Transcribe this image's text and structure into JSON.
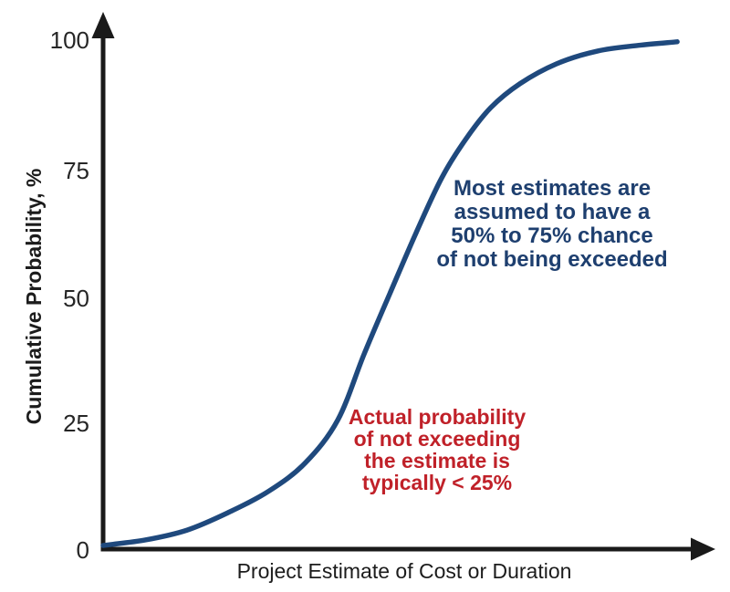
{
  "chart_data": {
    "type": "line",
    "title": "",
    "xlabel": "Project Estimate of Cost or Duration",
    "ylabel": "Cumulative Probability, %",
    "x_axis": {
      "label": "Project Estimate of Cost or Duration",
      "tick_labels": [],
      "arrow": true
    },
    "y_axis": {
      "label": "Cumulative Probability, %",
      "min": 0,
      "max": 100,
      "ticks_top_to_bottom": [
        100,
        75,
        50,
        25,
        0
      ],
      "tick_labels": [
        "100",
        "75",
        "50",
        "25",
        "0"
      ],
      "arrow": true
    },
    "grid": false,
    "legend": false,
    "background": "#ffffff",
    "axis_color": "#1a1a1a",
    "series": [
      {
        "name": "cumulative-probability-s-curve",
        "color": "#1f497d",
        "stroke_width": 5.5,
        "x_units": "fraction of x-axis (axis is unlabeled)",
        "y_units": "percent",
        "points": [
          {
            "x": 0.0,
            "y": 0.9
          },
          {
            "x": 0.07,
            "y": 2.0
          },
          {
            "x": 0.137,
            "y": 3.9
          },
          {
            "x": 0.204,
            "y": 7.3
          },
          {
            "x": 0.272,
            "y": 11.6
          },
          {
            "x": 0.331,
            "y": 17.1
          },
          {
            "x": 0.384,
            "y": 25.5
          },
          {
            "x": 0.427,
            "y": 38.4
          },
          {
            "x": 0.469,
            "y": 50.2
          },
          {
            "x": 0.512,
            "y": 62.1
          },
          {
            "x": 0.554,
            "y": 72.9
          },
          {
            "x": 0.593,
            "y": 80.4
          },
          {
            "x": 0.634,
            "y": 86.6
          },
          {
            "x": 0.682,
            "y": 91.3
          },
          {
            "x": 0.742,
            "y": 95.2
          },
          {
            "x": 0.809,
            "y": 97.7
          },
          {
            "x": 0.876,
            "y": 98.8
          },
          {
            "x": 0.939,
            "y": 99.5
          }
        ]
      }
    ],
    "annotations": [
      {
        "id": "most-estimates",
        "color": "#1e3f6f",
        "text": "Most estimates are\nassumed to have a\n50% to 75% chance\nof not being exceeded"
      },
      {
        "id": "actual-probability",
        "color": "#c02129",
        "text": "Actual probability\nof not exceeding\nthe estimate is\ntypically < 25%"
      }
    ]
  }
}
